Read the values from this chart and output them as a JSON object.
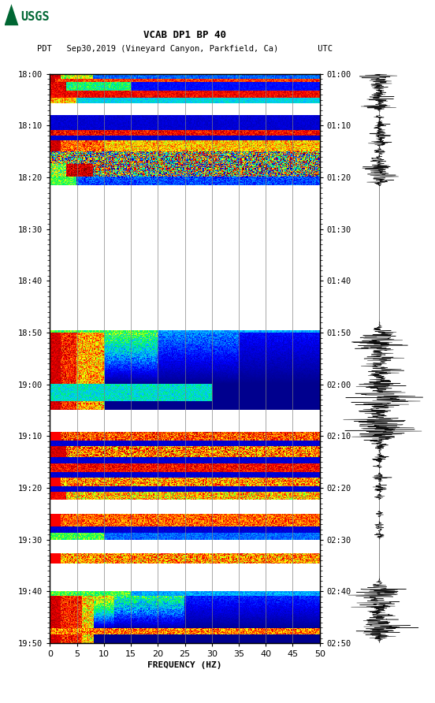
{
  "title_line1": "VCAB DP1 BP 40",
  "title_line2": "PDT   Sep30,2019 (Vineyard Canyon, Parkfield, Ca)        UTC",
  "xlabel": "FREQUENCY (HZ)",
  "freq_min": 0,
  "freq_max": 50,
  "freq_ticks": [
    0,
    5,
    10,
    15,
    20,
    25,
    30,
    35,
    40,
    45,
    50
  ],
  "left_times": [
    "18:00",
    "18:10",
    "18:20",
    "18:30",
    "18:40",
    "18:50",
    "19:00",
    "19:10",
    "19:20",
    "19:30",
    "19:40",
    "19:50"
  ],
  "right_times": [
    "01:00",
    "01:10",
    "01:20",
    "01:30",
    "01:40",
    "01:50",
    "02:00",
    "02:10",
    "02:20",
    "02:30",
    "02:40",
    "02:50"
  ],
  "n_time_bins": 660,
  "n_freq_bins": 300,
  "background_color": "white",
  "fig_width": 5.52,
  "fig_height": 8.92,
  "logo_color": "#006633"
}
